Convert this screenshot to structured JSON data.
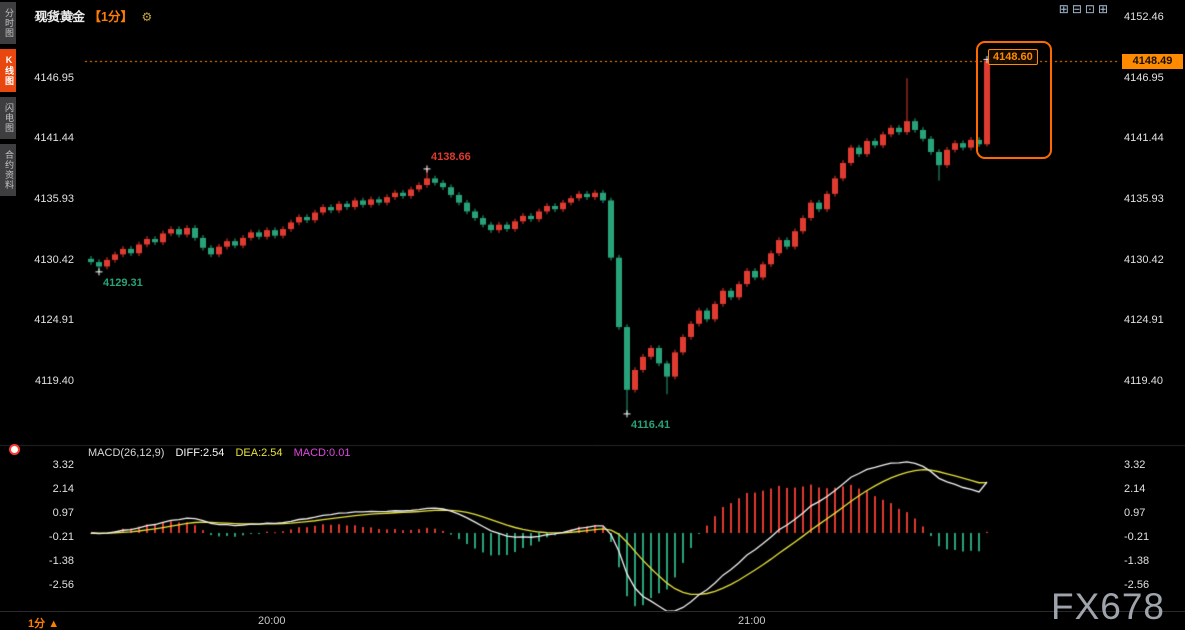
{
  "sidebar": {
    "tabs": [
      {
        "label": "分时图",
        "active": false
      },
      {
        "label": "K线图",
        "active": true
      },
      {
        "label": "闪电图",
        "active": false
      },
      {
        "label": "合约资料",
        "active": false
      }
    ]
  },
  "header": {
    "symbol": "现货黄金",
    "period": "【1分】",
    "settings_glyph": "⚙"
  },
  "toolbar_icons": [
    {
      "name": "layout-grid-icon",
      "glyph": "⊞"
    },
    {
      "name": "layout-split-horizontal-icon",
      "glyph": "⊟"
    },
    {
      "name": "layout-split-vertical-icon",
      "glyph": "⊡"
    },
    {
      "name": "layout-quad-icon",
      "glyph": "⊞"
    }
  ],
  "price_axis": {
    "labels": [
      "4152.46",
      "4146.95",
      "4141.44",
      "4135.93",
      "4130.42",
      "4124.91",
      "4119.40"
    ]
  },
  "current_price": {
    "value": "4148.49"
  },
  "highlight": {
    "label": "4148.60"
  },
  "macd": {
    "title": "MACD(26,12,9)",
    "diff": "DIFF:2.54",
    "dea": "DEA:2.54",
    "macd": "MACD:0.01",
    "axis": [
      "3.32",
      "2.14",
      "0.97",
      "-0.21",
      "-1.38",
      "-2.56"
    ]
  },
  "bottom": {
    "period": "1分",
    "arrow": "▲"
  },
  "watermark": "FX678",
  "colors": {
    "up": "#e03b30",
    "down": "#27a27a",
    "accent_orange": "#ff8a00",
    "diff_line": "#f2f2f2",
    "dea_line": "#e6e23a",
    "divider": "#262626",
    "marker": "#ffffff"
  },
  "chart_data": {
    "type": "candlestick",
    "title": "现货黄金 1分 K线 + MACD",
    "price_range": [
      4119.4,
      4152.46
    ],
    "macd_axis_range": [
      -2.56,
      3.32
    ],
    "time_labels": [
      {
        "label": "20:00",
        "index": 23
      },
      {
        "label": "21:00",
        "index": 83
      }
    ],
    "annotations": [
      {
        "text": "4129.31",
        "index": 1,
        "price": 4129.31,
        "color": "down",
        "pos": "below"
      },
      {
        "text": "4138.66",
        "index": 42,
        "price": 4138.66,
        "color": "up",
        "pos": "above"
      },
      {
        "text": "4116.41",
        "index": 67,
        "price": 4116.41,
        "color": "down",
        "pos": "below"
      },
      {
        "text": "",
        "index": 112,
        "price": 4148.6,
        "color": "up",
        "pos": "above"
      }
    ],
    "macd_params": {
      "fast": 12,
      "slow": 26,
      "signal": 9
    },
    "candles": [
      [
        4130.5,
        4130.75,
        4129.95,
        4130.2
      ],
      [
        4130.2,
        4130.45,
        4129.31,
        4129.8
      ],
      [
        4129.8,
        4130.65,
        4129.55,
        4130.4
      ],
      [
        4130.4,
        4131.15,
        4130.15,
        4130.9
      ],
      [
        4130.9,
        4131.65,
        4130.65,
        4131.4
      ],
      [
        4131.4,
        4131.65,
        4130.75,
        4131.0
      ],
      [
        4131.0,
        4132.05,
        4130.75,
        4131.8
      ],
      [
        4131.8,
        4132.55,
        4131.55,
        4132.3
      ],
      [
        4132.3,
        4132.55,
        4131.75,
        4132.0
      ],
      [
        4132.0,
        4133.05,
        4131.75,
        4132.8
      ],
      [
        4132.8,
        4133.45,
        4132.55,
        4133.2
      ],
      [
        4133.2,
        4133.45,
        4132.45,
        4132.7
      ],
      [
        4132.7,
        4133.55,
        4132.45,
        4133.3
      ],
      [
        4133.3,
        4133.55,
        4132.15,
        4132.4
      ],
      [
        4132.4,
        4132.65,
        4131.25,
        4131.5
      ],
      [
        4131.5,
        4131.75,
        4130.65,
        4130.9
      ],
      [
        4130.9,
        4131.85,
        4130.65,
        4131.6
      ],
      [
        4131.6,
        4132.35,
        4131.35,
        4132.1
      ],
      [
        4132.1,
        4132.35,
        4131.45,
        4131.7
      ],
      [
        4131.7,
        4132.65,
        4131.45,
        4132.4
      ],
      [
        4132.4,
        4133.15,
        4132.15,
        4132.9
      ],
      [
        4132.9,
        4133.15,
        4132.25,
        4132.5
      ],
      [
        4132.5,
        4133.35,
        4132.25,
        4133.1
      ],
      [
        4133.1,
        4133.35,
        4132.35,
        4132.6
      ],
      [
        4132.6,
        4133.45,
        4132.35,
        4133.2
      ],
      [
        4133.2,
        4134.05,
        4132.95,
        4133.8
      ],
      [
        4133.8,
        4134.55,
        4133.55,
        4134.3
      ],
      [
        4134.3,
        4134.55,
        4133.75,
        4134.0
      ],
      [
        4134.0,
        4134.95,
        4133.75,
        4134.7
      ],
      [
        4134.7,
        4135.45,
        4134.45,
        4135.2
      ],
      [
        4135.2,
        4135.45,
        4134.65,
        4134.9
      ],
      [
        4134.9,
        4135.75,
        4134.65,
        4135.5
      ],
      [
        4135.5,
        4135.75,
        4134.95,
        4135.2
      ],
      [
        4135.2,
        4136.05,
        4134.95,
        4135.8
      ],
      [
        4135.8,
        4136.05,
        4135.15,
        4135.4
      ],
      [
        4135.4,
        4136.15,
        4135.15,
        4135.9
      ],
      [
        4135.9,
        4136.15,
        4135.35,
        4135.6
      ],
      [
        4135.6,
        4136.35,
        4135.35,
        4136.1
      ],
      [
        4136.1,
        4136.75,
        4135.85,
        4136.5
      ],
      [
        4136.5,
        4136.75,
        4135.95,
        4136.2
      ],
      [
        4136.2,
        4137.05,
        4135.95,
        4136.8
      ],
      [
        4136.8,
        4137.45,
        4136.55,
        4137.2
      ],
      [
        4137.2,
        4138.66,
        4136.95,
        4137.8
      ],
      [
        4137.8,
        4138.05,
        4137.15,
        4137.4
      ],
      [
        4137.4,
        4137.65,
        4136.75,
        4137.0
      ],
      [
        4137.0,
        4137.25,
        4136.05,
        4136.3
      ],
      [
        4136.3,
        4136.55,
        4135.35,
        4135.6
      ],
      [
        4135.6,
        4135.85,
        4134.55,
        4134.8
      ],
      [
        4134.8,
        4135.05,
        4133.95,
        4134.2
      ],
      [
        4134.2,
        4134.45,
        4133.35,
        4133.6
      ],
      [
        4133.6,
        4133.85,
        4132.85,
        4133.1
      ],
      [
        4133.1,
        4133.85,
        4132.85,
        4133.6
      ],
      [
        4133.6,
        4133.85,
        4132.95,
        4133.2
      ],
      [
        4133.2,
        4134.15,
        4132.95,
        4133.9
      ],
      [
        4133.9,
        4134.65,
        4133.65,
        4134.4
      ],
      [
        4134.4,
        4134.65,
        4133.85,
        4134.1
      ],
      [
        4134.1,
        4135.05,
        4133.85,
        4134.8
      ],
      [
        4134.8,
        4135.55,
        4134.55,
        4135.3
      ],
      [
        4135.3,
        4135.55,
        4134.75,
        4135.0
      ],
      [
        4135.0,
        4135.85,
        4134.75,
        4135.6
      ],
      [
        4135.6,
        4136.25,
        4135.35,
        4136.0
      ],
      [
        4136.0,
        4136.65,
        4135.75,
        4136.4
      ],
      [
        4136.4,
        4136.65,
        4135.85,
        4136.1
      ],
      [
        4136.1,
        4136.75,
        4135.85,
        4136.5
      ],
      [
        4136.5,
        4136.75,
        4135.55,
        4135.8
      ],
      [
        4135.8,
        4136.05,
        4130.35,
        4130.6
      ],
      [
        4130.6,
        4130.85,
        4124.05,
        4124.3
      ],
      [
        4124.3,
        4124.55,
        4116.41,
        4118.6
      ],
      [
        4118.6,
        4120.65,
        4118.35,
        4120.4
      ],
      [
        4120.4,
        4121.85,
        4120.15,
        4121.6
      ],
      [
        4121.6,
        4122.65,
        4121.35,
        4122.4
      ],
      [
        4122.4,
        4122.65,
        4120.75,
        4121.0
      ],
      [
        4121.0,
        4121.25,
        4118.2,
        4119.8
      ],
      [
        4119.8,
        4122.25,
        4119.55,
        4122.0
      ],
      [
        4122.0,
        4123.65,
        4121.75,
        4123.4
      ],
      [
        4123.4,
        4124.85,
        4123.15,
        4124.6
      ],
      [
        4124.6,
        4126.05,
        4124.35,
        4125.8
      ],
      [
        4125.8,
        4126.05,
        4124.75,
        4125.0
      ],
      [
        4125.0,
        4126.65,
        4124.75,
        4126.4
      ],
      [
        4126.4,
        4127.85,
        4126.15,
        4127.6
      ],
      [
        4127.6,
        4127.85,
        4126.75,
        4127.0
      ],
      [
        4127.0,
        4128.45,
        4126.75,
        4128.2
      ],
      [
        4128.2,
        4129.65,
        4127.95,
        4129.4
      ],
      [
        4129.4,
        4129.65,
        4128.55,
        4128.8
      ],
      [
        4128.8,
        4130.25,
        4128.55,
        4130.0
      ],
      [
        4130.0,
        4131.25,
        4129.75,
        4131.0
      ],
      [
        4131.0,
        4132.45,
        4130.75,
        4132.2
      ],
      [
        4132.2,
        4132.45,
        4131.35,
        4131.6
      ],
      [
        4131.6,
        4133.25,
        4131.35,
        4133.0
      ],
      [
        4133.0,
        4134.45,
        4132.75,
        4134.2
      ],
      [
        4134.2,
        4135.85,
        4133.95,
        4135.6
      ],
      [
        4135.6,
        4135.85,
        4134.75,
        4135.0
      ],
      [
        4135.0,
        4136.65,
        4134.75,
        4136.4
      ],
      [
        4136.4,
        4138.05,
        4136.15,
        4137.8
      ],
      [
        4137.8,
        4139.45,
        4137.55,
        4139.2
      ],
      [
        4139.2,
        4140.85,
        4138.95,
        4140.6
      ],
      [
        4140.6,
        4140.85,
        4139.75,
        4140.0
      ],
      [
        4140.0,
        4141.45,
        4139.75,
        4141.2
      ],
      [
        4141.2,
        4141.45,
        4140.55,
        4140.8
      ],
      [
        4140.8,
        4142.05,
        4140.55,
        4141.8
      ],
      [
        4141.8,
        4142.65,
        4141.55,
        4142.4
      ],
      [
        4142.4,
        4142.65,
        4141.75,
        4142.0
      ],
      [
        4142.0,
        4146.9,
        4141.75,
        4143.0
      ],
      [
        4143.0,
        4143.25,
        4141.95,
        4142.2
      ],
      [
        4142.2,
        4142.45,
        4141.15,
        4141.4
      ],
      [
        4141.4,
        4141.65,
        4139.95,
        4140.2
      ],
      [
        4140.2,
        4140.45,
        4137.6,
        4139.0
      ],
      [
        4139.0,
        4140.65,
        4138.75,
        4140.4
      ],
      [
        4140.4,
        4141.25,
        4140.15,
        4141.0
      ],
      [
        4141.0,
        4141.25,
        4140.35,
        4140.6
      ],
      [
        4140.6,
        4141.55,
        4140.35,
        4141.3
      ],
      [
        4141.3,
        4141.55,
        4140.65,
        4140.9
      ],
      [
        4140.9,
        4148.6,
        4140.7,
        4148.49
      ]
    ]
  }
}
